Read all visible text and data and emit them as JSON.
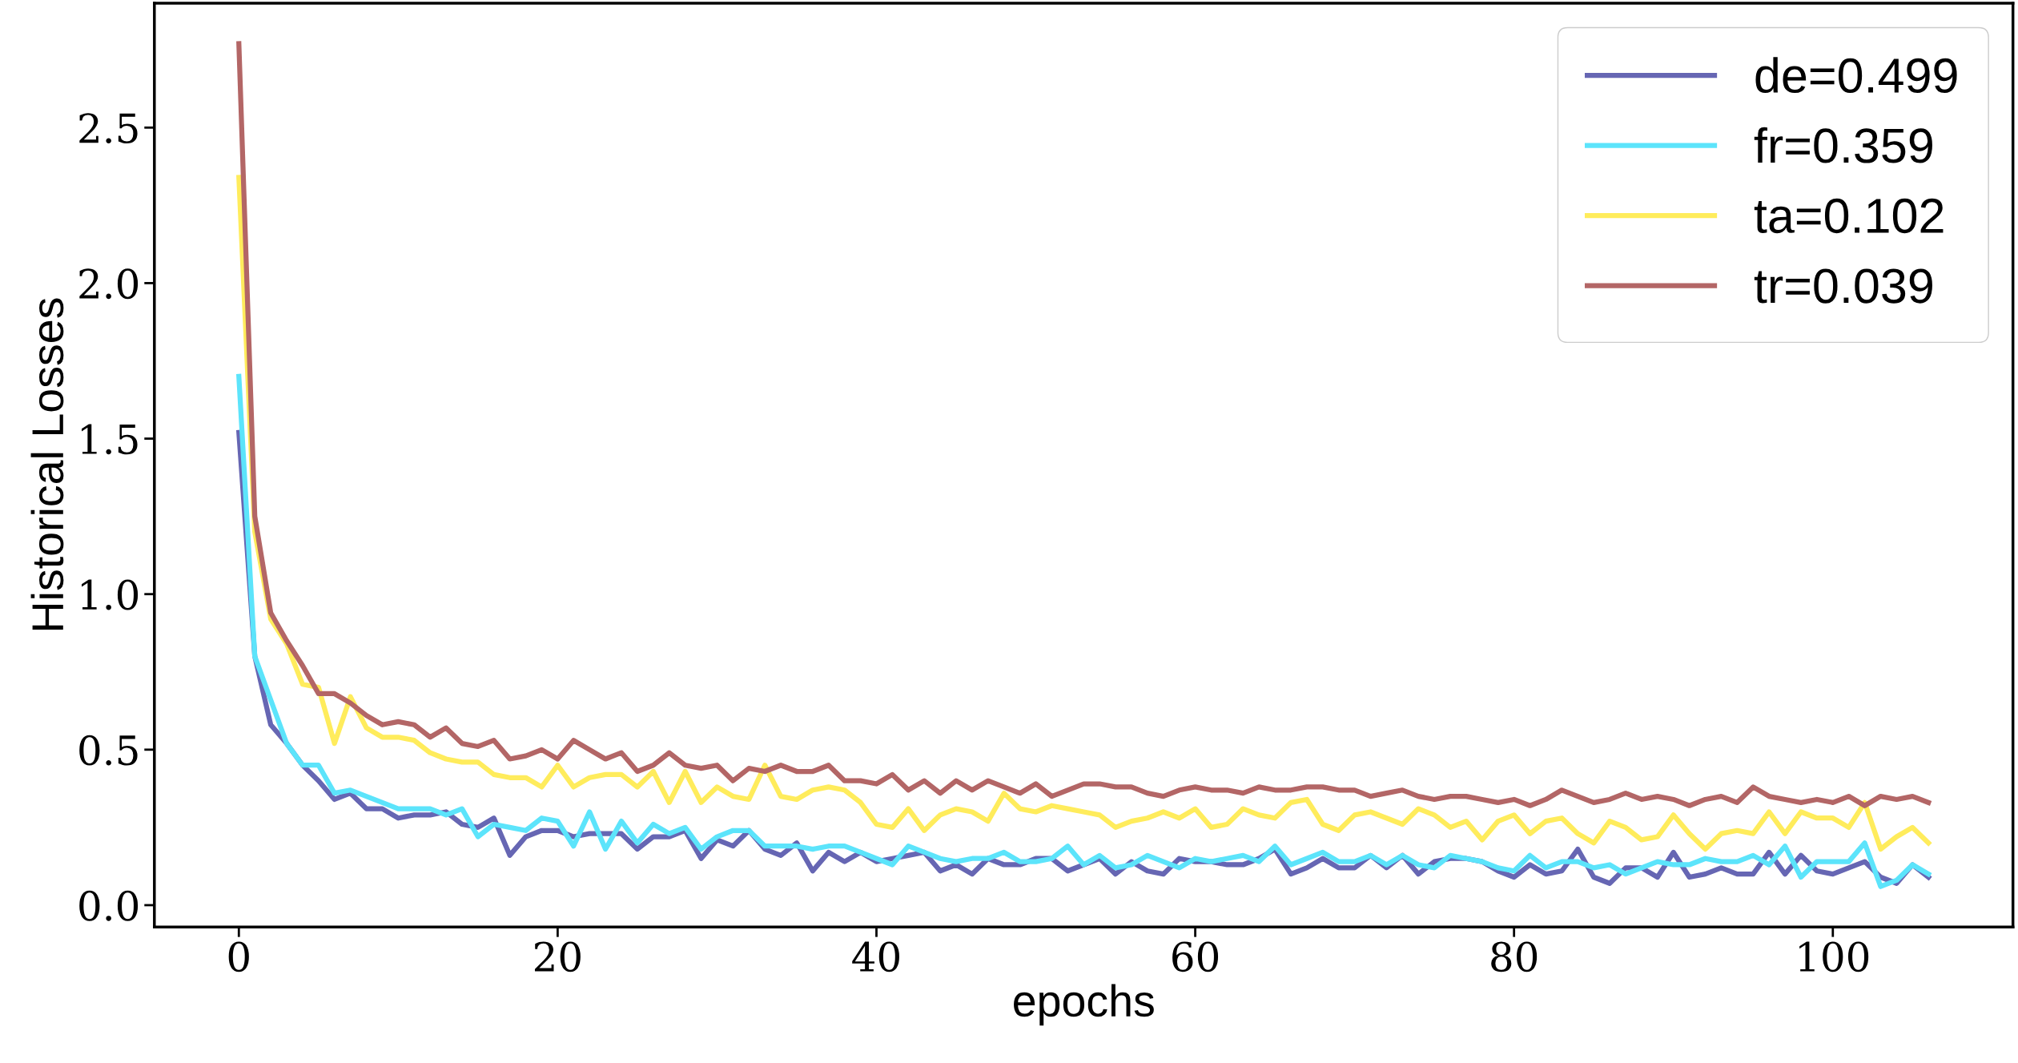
{
  "chart_data": {
    "type": "line",
    "xlabel": "epochs",
    "ylabel": "Historical Losses",
    "x": [
      0,
      1,
      2,
      3,
      4,
      5,
      6,
      7,
      8,
      9,
      10,
      11,
      12,
      13,
      14,
      15,
      16,
      17,
      18,
      19,
      20,
      21,
      22,
      23,
      24,
      25,
      26,
      27,
      28,
      29,
      30,
      31,
      32,
      33,
      34,
      35,
      36,
      37,
      38,
      39,
      40,
      41,
      42,
      43,
      44,
      45,
      46,
      47,
      48,
      49,
      50,
      51,
      52,
      53,
      54,
      55,
      56,
      57,
      58,
      59,
      60,
      61,
      62,
      63,
      64,
      65,
      66,
      67,
      68,
      69,
      70,
      71,
      72,
      73,
      74,
      75,
      76,
      77,
      78,
      79,
      80,
      81,
      82,
      83,
      84,
      85,
      86,
      87,
      88,
      89,
      90,
      91,
      92,
      93,
      94,
      95,
      96,
      97,
      98,
      99,
      100,
      101,
      102,
      103,
      104,
      105,
      106
    ],
    "series": [
      {
        "name": "de=0.499",
        "color": "#6666b3",
        "values": [
          1.52,
          0.8,
          0.58,
          0.52,
          0.45,
          0.4,
          0.34,
          0.36,
          0.31,
          0.31,
          0.28,
          0.29,
          0.29,
          0.3,
          0.26,
          0.25,
          0.28,
          0.16,
          0.22,
          0.24,
          0.24,
          0.22,
          0.23,
          0.23,
          0.23,
          0.18,
          0.22,
          0.22,
          0.24,
          0.15,
          0.21,
          0.19,
          0.24,
          0.18,
          0.16,
          0.2,
          0.11,
          0.17,
          0.14,
          0.17,
          0.14,
          0.15,
          0.16,
          0.17,
          0.11,
          0.13,
          0.1,
          0.15,
          0.13,
          0.13,
          0.15,
          0.15,
          0.11,
          0.13,
          0.15,
          0.1,
          0.14,
          0.11,
          0.1,
          0.15,
          0.14,
          0.14,
          0.13,
          0.13,
          0.15,
          0.18,
          0.1,
          0.12,
          0.15,
          0.12,
          0.12,
          0.16,
          0.12,
          0.16,
          0.1,
          0.14,
          0.15,
          0.15,
          0.14,
          0.11,
          0.09,
          0.13,
          0.1,
          0.11,
          0.18,
          0.09,
          0.07,
          0.12,
          0.12,
          0.09,
          0.17,
          0.09,
          0.1,
          0.12,
          0.1,
          0.1,
          0.17,
          0.1,
          0.16,
          0.11,
          0.1,
          0.12,
          0.14,
          0.09,
          0.07,
          0.13,
          0.09
        ]
      },
      {
        "name": "fr=0.359",
        "color": "#5ce4fb",
        "values": [
          1.7,
          0.8,
          0.66,
          0.52,
          0.45,
          0.45,
          0.36,
          0.37,
          0.35,
          0.33,
          0.31,
          0.31,
          0.31,
          0.29,
          0.31,
          0.22,
          0.26,
          0.25,
          0.24,
          0.28,
          0.27,
          0.19,
          0.3,
          0.18,
          0.27,
          0.2,
          0.26,
          0.23,
          0.25,
          0.18,
          0.22,
          0.24,
          0.24,
          0.19,
          0.19,
          0.19,
          0.18,
          0.19,
          0.19,
          0.17,
          0.15,
          0.13,
          0.19,
          0.17,
          0.15,
          0.14,
          0.15,
          0.15,
          0.17,
          0.14,
          0.14,
          0.15,
          0.19,
          0.13,
          0.16,
          0.12,
          0.13,
          0.16,
          0.14,
          0.12,
          0.15,
          0.14,
          0.15,
          0.16,
          0.14,
          0.19,
          0.13,
          0.15,
          0.17,
          0.14,
          0.14,
          0.16,
          0.13,
          0.16,
          0.13,
          0.12,
          0.16,
          0.15,
          0.14,
          0.12,
          0.11,
          0.16,
          0.12,
          0.14,
          0.14,
          0.12,
          0.13,
          0.1,
          0.12,
          0.14,
          0.13,
          0.13,
          0.15,
          0.14,
          0.14,
          0.16,
          0.13,
          0.19,
          0.09,
          0.14,
          0.14,
          0.14,
          0.2,
          0.06,
          0.08,
          0.13,
          0.1
        ]
      },
      {
        "name": "ta=0.102",
        "color": "#ffec5c",
        "values": [
          2.34,
          1.2,
          0.92,
          0.84,
          0.71,
          0.7,
          0.52,
          0.67,
          0.57,
          0.54,
          0.54,
          0.53,
          0.49,
          0.47,
          0.46,
          0.46,
          0.42,
          0.41,
          0.41,
          0.38,
          0.45,
          0.38,
          0.41,
          0.42,
          0.42,
          0.38,
          0.43,
          0.33,
          0.43,
          0.33,
          0.38,
          0.35,
          0.34,
          0.45,
          0.35,
          0.34,
          0.37,
          0.38,
          0.37,
          0.33,
          0.26,
          0.25,
          0.31,
          0.24,
          0.29,
          0.31,
          0.3,
          0.27,
          0.36,
          0.31,
          0.3,
          0.32,
          0.31,
          0.3,
          0.29,
          0.25,
          0.27,
          0.28,
          0.3,
          0.28,
          0.31,
          0.25,
          0.26,
          0.31,
          0.29,
          0.28,
          0.33,
          0.34,
          0.26,
          0.24,
          0.29,
          0.3,
          0.28,
          0.26,
          0.31,
          0.29,
          0.25,
          0.27,
          0.21,
          0.27,
          0.29,
          0.23,
          0.27,
          0.28,
          0.23,
          0.2,
          0.27,
          0.25,
          0.21,
          0.22,
          0.29,
          0.23,
          0.18,
          0.23,
          0.24,
          0.23,
          0.3,
          0.23,
          0.3,
          0.28,
          0.28,
          0.25,
          0.33,
          0.18,
          0.22,
          0.25,
          0.2
        ]
      },
      {
        "name": "tr=0.039",
        "color": "#b36666",
        "values": [
          2.77,
          1.25,
          0.94,
          0.85,
          0.77,
          0.68,
          0.68,
          0.65,
          0.61,
          0.58,
          0.59,
          0.58,
          0.54,
          0.57,
          0.52,
          0.51,
          0.53,
          0.47,
          0.48,
          0.5,
          0.47,
          0.53,
          0.5,
          0.47,
          0.49,
          0.43,
          0.45,
          0.49,
          0.45,
          0.44,
          0.45,
          0.4,
          0.44,
          0.43,
          0.45,
          0.43,
          0.43,
          0.45,
          0.4,
          0.4,
          0.39,
          0.42,
          0.37,
          0.4,
          0.36,
          0.4,
          0.37,
          0.4,
          0.38,
          0.36,
          0.39,
          0.35,
          0.37,
          0.39,
          0.39,
          0.38,
          0.38,
          0.36,
          0.35,
          0.37,
          0.38,
          0.37,
          0.37,
          0.36,
          0.38,
          0.37,
          0.37,
          0.38,
          0.38,
          0.37,
          0.37,
          0.35,
          0.36,
          0.37,
          0.35,
          0.34,
          0.35,
          0.35,
          0.34,
          0.33,
          0.34,
          0.32,
          0.34,
          0.37,
          0.35,
          0.33,
          0.34,
          0.36,
          0.34,
          0.35,
          0.34,
          0.32,
          0.34,
          0.35,
          0.33,
          0.38,
          0.35,
          0.34,
          0.33,
          0.34,
          0.33,
          0.35,
          0.32,
          0.35,
          0.34,
          0.35,
          0.33
        ]
      }
    ],
    "xlim": [
      -5.3,
      111.3
    ],
    "ylim": [
      -0.07,
      2.9
    ],
    "xticks": [
      0,
      20,
      40,
      60,
      80,
      100
    ],
    "yticks": [
      {
        "value": 0,
        "label": "0.0"
      },
      0.5,
      {
        "value": 1,
        "label": "1.0"
      },
      1.5,
      {
        "value": 2,
        "label": "2.0"
      },
      2.5
    ],
    "grid": false,
    "legend": "top right",
    "line_style": "solid",
    "marker": "none"
  }
}
